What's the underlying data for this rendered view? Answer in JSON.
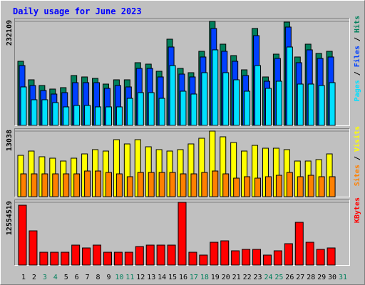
{
  "chart_data": [
    {
      "type": "bar",
      "title": "Daily usage for June 2023",
      "title_color": "#0000ff",
      "legend_separator": "/",
      "ylim": [
        0,
        240058
      ],
      "yticks": [
        232109
      ],
      "series": [
        {
          "name": "Hits",
          "color": "#00805c",
          "values": [
            143100,
            101760,
            89040,
            81090,
            84270,
            111300,
            108120,
            104940,
            92220,
            101760,
            101760,
            139920,
            136740,
            120840,
            192390,
            127200,
            117660,
            165360,
            232109,
            181260,
            155820,
            124020,
            216240,
            108120,
            159000,
            230500,
            152640,
            181260,
            160590,
            165360,
            null
          ]
        },
        {
          "name": "Files",
          "color": "#0040ff",
          "values": [
            133560,
            89040,
            77910,
            69960,
            73140,
            95400,
            95400,
            95400,
            82680,
            89040,
            85860,
            127200,
            127200,
            108120,
            174900,
            114480,
            108120,
            152640,
            216240,
            165360,
            143100,
            111300,
            200340,
            98580,
            149460,
            219420,
            139920,
            168540,
            149460,
            152640,
            null
          ]
        },
        {
          "name": "Pages",
          "color": "#00e0ff",
          "values": [
            85860,
            57240,
            57240,
            50880,
            41340,
            44520,
            44520,
            41340,
            41340,
            41340,
            60420,
            73140,
            73140,
            60420,
            133560,
            76320,
            69960,
            117660,
            168540,
            117660,
            101760,
            76320,
            133560,
            82680,
            98580,
            174900,
            92220,
            92220,
            89040,
            95400,
            null
          ]
        }
      ]
    },
    {
      "type": "bar",
      "legend_separator": "/",
      "ylim": [
        0,
        13605
      ],
      "yticks": [
        13038
      ],
      "series": [
        {
          "name": "Visits",
          "color": "#ffff00",
          "values": [
            8219,
            9069,
            7935,
            7652,
            7085,
            7652,
            8502,
            9352,
            9069,
            11336,
            10486,
            11336,
            9919,
            9352,
            9069,
            9352,
            10486,
            11619,
            13038,
            11903,
            10769,
            9069,
            10202,
            9636,
            9636,
            9352,
            7085,
            7085,
            7368,
            8502,
            null
          ]
        },
        {
          "name": "Sites",
          "color": "#ff8000",
          "values": [
            4534,
            4534,
            4534,
            4534,
            4534,
            4534,
            5101,
            5101,
            4818,
            4534,
            3968,
            4818,
            4818,
            4818,
            4818,
            4534,
            4534,
            4818,
            5101,
            4534,
            3684,
            3968,
            3684,
            3968,
            4251,
            4818,
            3968,
            4251,
            3968,
            3968,
            null
          ]
        }
      ]
    },
    {
      "type": "bar",
      "ylim": [
        0,
        13125179
      ],
      "yticks": [
        12554519
      ],
      "categories": [
        "1",
        "2",
        "3",
        "4",
        "5",
        "6",
        "7",
        "8",
        "9",
        "10",
        "11",
        "12",
        "13",
        "14",
        "15",
        "16",
        "17",
        "18",
        "19",
        "20",
        "21",
        "22",
        "23",
        "24",
        "25",
        "26",
        "27",
        "28",
        "29",
        "30",
        "31"
      ],
      "category_colors": [
        "#000000",
        "#000000",
        "#00805c",
        "#00805c",
        "#000000",
        "#000000",
        "#000000",
        "#000000",
        "#000000",
        "#00805c",
        "#00805c",
        "#000000",
        "#000000",
        "#000000",
        "#000000",
        "#000000",
        "#00805c",
        "#00805c",
        "#000000",
        "#000000",
        "#000000",
        "#000000",
        "#000000",
        "#00805c",
        "#00805c",
        "#000000",
        "#000000",
        "#000000",
        "#000000",
        "#000000",
        "#00805c"
      ],
      "series": [
        {
          "name": "KBytes",
          "color": "#ff0000",
          "values": [
            11983860,
            6847920,
            2567970,
            2567970,
            2567970,
            3994620,
            3423960,
            3994620,
            2567970,
            2567970,
            2567970,
            3709290,
            3994620,
            3994620,
            3994620,
            12554519,
            2567970,
            1997310,
            4565280,
            4850610,
            2853300,
            3138630,
            3138630,
            1997310,
            2853300,
            4279950,
            8559900,
            4565280,
            3138630,
            3423960,
            null
          ]
        }
      ]
    }
  ]
}
